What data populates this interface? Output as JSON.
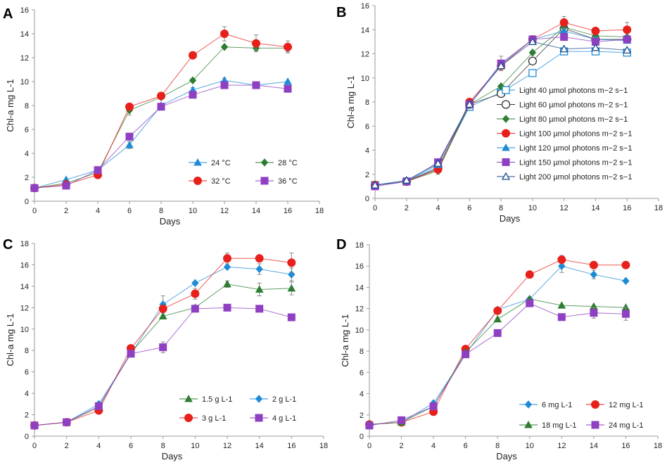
{
  "chart_data": [
    {
      "panel": "A",
      "type": "line",
      "xlabel": "Days",
      "ylabel": "Chl-a mg L-1",
      "xlim": [
        0,
        18
      ],
      "ylim": [
        0,
        16
      ],
      "xticks": [
        0,
        2,
        4,
        6,
        8,
        10,
        12,
        14,
        16,
        18
      ],
      "yticks": [
        0,
        2,
        4,
        6,
        8,
        10,
        12,
        14,
        16
      ],
      "legend_position": "bottom-right",
      "legend_columns": 2,
      "series": [
        {
          "name": "24 °C",
          "marker": "triangle",
          "color": "#1f8bd6",
          "x": [
            0,
            2,
            4,
            6,
            8,
            10,
            12,
            14,
            16
          ],
          "values": [
            1.1,
            1.8,
            2.6,
            4.7,
            8.0,
            9.3,
            10.1,
            9.7,
            10.0
          ],
          "err": [
            0,
            0,
            0,
            0.3,
            0,
            0.2,
            0.2,
            0,
            0
          ]
        },
        {
          "name": "28 °C",
          "marker": "diamond",
          "color": "#2e7d32",
          "x": [
            0,
            2,
            4,
            6,
            8,
            10,
            12,
            14,
            16
          ],
          "values": [
            1.1,
            1.5,
            2.4,
            7.6,
            8.7,
            10.1,
            12.9,
            12.8,
            12.8
          ],
          "err": [
            0,
            0,
            0,
            0.4,
            0,
            0,
            0,
            0.2,
            0.3
          ]
        },
        {
          "name": "32 °C",
          "marker": "circle",
          "color": "#e8201c",
          "x": [
            0,
            2,
            4,
            6,
            8,
            10,
            12,
            14,
            16
          ],
          "values": [
            1.1,
            1.4,
            2.2,
            7.9,
            8.8,
            12.2,
            14.0,
            13.2,
            12.9
          ],
          "err": [
            0,
            0,
            0,
            0,
            0,
            0.3,
            0.6,
            0.7,
            0.5
          ]
        },
        {
          "name": "36 °C",
          "marker": "square",
          "color": "#8e3fc2",
          "x": [
            0,
            2,
            4,
            6,
            8,
            10,
            12,
            14,
            16
          ],
          "values": [
            1.1,
            1.3,
            2.6,
            5.4,
            7.9,
            8.9,
            9.7,
            9.7,
            9.4
          ],
          "err": [
            0,
            0,
            0,
            0,
            0,
            0,
            0,
            0,
            0
          ]
        }
      ]
    },
    {
      "panel": "B",
      "type": "line",
      "xlabel": "Days",
      "ylabel": "Chl-a mg L-1",
      "xlim": [
        0,
        18
      ],
      "ylim": [
        0,
        16
      ],
      "xticks": [
        0,
        2,
        4,
        6,
        8,
        10,
        12,
        14,
        16,
        18
      ],
      "yticks": [
        0,
        2,
        4,
        6,
        8,
        10,
        12,
        14,
        16
      ],
      "legend_position": "right",
      "legend_columns": 1,
      "series": [
        {
          "name": "Light 40  µmol photons m−2 s−1",
          "marker": "square-open",
          "color": "#1f8bd6",
          "x": [
            0,
            2,
            4,
            6,
            8,
            10,
            12,
            14,
            16
          ],
          "values": [
            1.1,
            1.4,
            2.6,
            7.6,
            8.8,
            10.4,
            12.2,
            12.2,
            12.1
          ],
          "err": [
            0,
            0,
            0,
            0,
            0,
            0,
            0,
            0,
            0
          ]
        },
        {
          "name": "Light 60  µmol photons m−2 s−1",
          "marker": "circle-open",
          "color": "#333333",
          "x": [
            0,
            2,
            4,
            6,
            8,
            10,
            12,
            14,
            16
          ],
          "values": [
            1.1,
            1.4,
            2.5,
            7.8,
            8.7,
            11.4,
            14.1,
            13.2,
            13.2
          ],
          "err": [
            0,
            0,
            0,
            0,
            0,
            0,
            0,
            0,
            0
          ]
        },
        {
          "name": "Light 80  µmol photons m−2 s−1",
          "marker": "diamond",
          "color": "#2e7d32",
          "x": [
            0,
            2,
            4,
            6,
            8,
            10,
            12,
            14,
            16
          ],
          "values": [
            1.1,
            1.4,
            2.3,
            7.8,
            9.3,
            12.1,
            14.2,
            13.5,
            13.4
          ],
          "err": [
            0,
            0,
            0.3,
            0,
            0,
            0,
            0,
            0,
            0
          ]
        },
        {
          "name": "Light 100  µmol photons m−2 s−1",
          "marker": "circle",
          "color": "#e8201c",
          "x": [
            0,
            2,
            4,
            6,
            8,
            10,
            12,
            14,
            16
          ],
          "values": [
            1.1,
            1.4,
            2.4,
            8.0,
            11.0,
            13.2,
            14.6,
            13.9,
            14.0
          ],
          "err": [
            0,
            0,
            0,
            0,
            0.3,
            0,
            0.5,
            0.3,
            0.6
          ]
        },
        {
          "name": "Light 120  µmol photons m−2 s−1",
          "marker": "triangle",
          "color": "#1f8bd6",
          "x": [
            0,
            2,
            4,
            6,
            8,
            10,
            12,
            14,
            16
          ],
          "values": [
            1.1,
            1.4,
            2.8,
            7.8,
            11.1,
            13.2,
            13.9,
            13.2,
            13.1
          ],
          "err": [
            0,
            0,
            0,
            0,
            0,
            0,
            0,
            0,
            0
          ]
        },
        {
          "name": "Light 150  µmol photons m−2 s−1",
          "marker": "square",
          "color": "#8e3fc2",
          "x": [
            0,
            2,
            4,
            6,
            8,
            10,
            12,
            14,
            16
          ],
          "values": [
            1.0,
            1.4,
            3.0,
            7.8,
            11.2,
            13.2,
            13.4,
            13.0,
            13.2
          ],
          "err": [
            0,
            0,
            0,
            0,
            0.6,
            0,
            0,
            0,
            0
          ]
        },
        {
          "name": "Light 200  µmol photons m−2 s−1",
          "marker": "triangle-open",
          "color": "#1a4f8a",
          "x": [
            0,
            2,
            4,
            6,
            8,
            10,
            12,
            14,
            16
          ],
          "values": [
            1.1,
            1.5,
            2.9,
            7.8,
            11.0,
            13.0,
            12.4,
            12.5,
            12.3
          ],
          "err": [
            0,
            0,
            0,
            0,
            0,
            0,
            0,
            0,
            0
          ]
        }
      ]
    },
    {
      "panel": "C",
      "type": "line",
      "xlabel": "Days",
      "ylabel": "Chl-a mg L-1",
      "xlim": [
        0,
        18
      ],
      "ylim": [
        0,
        18
      ],
      "xticks": [
        0,
        2,
        4,
        6,
        8,
        10,
        12,
        14,
        16,
        18
      ],
      "yticks": [
        0,
        2,
        4,
        6,
        8,
        10,
        12,
        14,
        16,
        18
      ],
      "legend_position": "bottom-right",
      "legend_columns": 2,
      "series": [
        {
          "name": "1.5 g L-1",
          "marker": "triangle",
          "color": "#2e7d32",
          "x": [
            0,
            2,
            4,
            6,
            8,
            10,
            12,
            14,
            16
          ],
          "values": [
            1.0,
            1.3,
            2.7,
            7.8,
            11.2,
            12.0,
            14.2,
            13.7,
            13.8
          ],
          "err": [
            0,
            0,
            0,
            0,
            0,
            0,
            0.3,
            0.6,
            0.6
          ]
        },
        {
          "name": "2 g L-1",
          "marker": "diamond",
          "color": "#1f8bd6",
          "x": [
            0,
            2,
            4,
            6,
            8,
            10,
            12,
            14,
            16
          ],
          "values": [
            1.0,
            1.3,
            3.0,
            7.7,
            12.3,
            14.3,
            15.8,
            15.6,
            15.1
          ],
          "err": [
            0,
            0,
            0,
            0,
            0.8,
            0,
            0,
            0.5,
            0.6
          ]
        },
        {
          "name": "3 g L-1",
          "marker": "circle",
          "color": "#e8201c",
          "x": [
            0,
            2,
            4,
            6,
            8,
            10,
            12,
            14,
            16
          ],
          "values": [
            1.0,
            1.3,
            2.4,
            8.2,
            11.9,
            13.3,
            16.6,
            16.6,
            16.2
          ],
          "err": [
            0,
            0,
            0,
            0,
            0,
            0.5,
            0.5,
            0,
            0.9
          ]
        },
        {
          "name": "4 g L-1",
          "marker": "square",
          "color": "#8e3fc2",
          "x": [
            0,
            2,
            4,
            6,
            8,
            10,
            12,
            14,
            16
          ],
          "values": [
            1.0,
            1.3,
            2.8,
            7.7,
            8.3,
            11.9,
            12.0,
            11.9,
            11.1
          ],
          "err": [
            0,
            0,
            0,
            0,
            0.5,
            0,
            0,
            0,
            0
          ]
        }
      ]
    },
    {
      "panel": "D",
      "type": "line",
      "xlabel": "Days",
      "ylabel": "Chl-a mg L-1",
      "xlim": [
        0,
        18
      ],
      "ylim": [
        0,
        18
      ],
      "xticks": [
        0,
        2,
        4,
        6,
        8,
        10,
        12,
        14,
        16,
        18
      ],
      "yticks": [
        0,
        2,
        4,
        6,
        8,
        10,
        12,
        14,
        16,
        18
      ],
      "legend_position": "bottom-right",
      "legend_columns": 2,
      "series": [
        {
          "name": "6 mg L-1",
          "marker": "diamond",
          "color": "#1f8bd6",
          "x": [
            0,
            2,
            4,
            6,
            8,
            10,
            12,
            14,
            16
          ],
          "values": [
            1.1,
            1.3,
            3.1,
            7.7,
            11.9,
            12.9,
            16.0,
            15.2,
            14.6
          ],
          "err": [
            0,
            0,
            0,
            0,
            0,
            0,
            0.6,
            0.4,
            0
          ]
        },
        {
          "name": "12 mg L-1",
          "marker": "circle",
          "color": "#e8201c",
          "x": [
            0,
            2,
            4,
            6,
            8,
            10,
            12,
            14,
            16
          ],
          "values": [
            1.1,
            1.3,
            2.3,
            8.2,
            11.8,
            15.2,
            16.6,
            16.1,
            16.1
          ],
          "err": [
            0,
            0,
            0,
            0,
            0,
            0.3,
            0.4,
            0,
            0
          ]
        },
        {
          "name": "18 mg L-1",
          "marker": "triangle",
          "color": "#2e7d32",
          "x": [
            0,
            2,
            4,
            6,
            8,
            10,
            12,
            14,
            16
          ],
          "values": [
            1.1,
            1.3,
            2.8,
            7.9,
            11.0,
            12.9,
            12.3,
            12.2,
            12.1
          ],
          "err": [
            0,
            0,
            0,
            0,
            0,
            0,
            0,
            0,
            0
          ]
        },
        {
          "name": "24 mg L-1",
          "marker": "square",
          "color": "#8e3fc2",
          "x": [
            0,
            2,
            4,
            6,
            8,
            10,
            12,
            14,
            16
          ],
          "values": [
            1.0,
            1.5,
            2.8,
            7.7,
            9.7,
            12.5,
            11.2,
            11.6,
            11.5
          ],
          "err": [
            0,
            0,
            0,
            0,
            0,
            0,
            0,
            0.5,
            0.6
          ]
        }
      ]
    }
  ]
}
